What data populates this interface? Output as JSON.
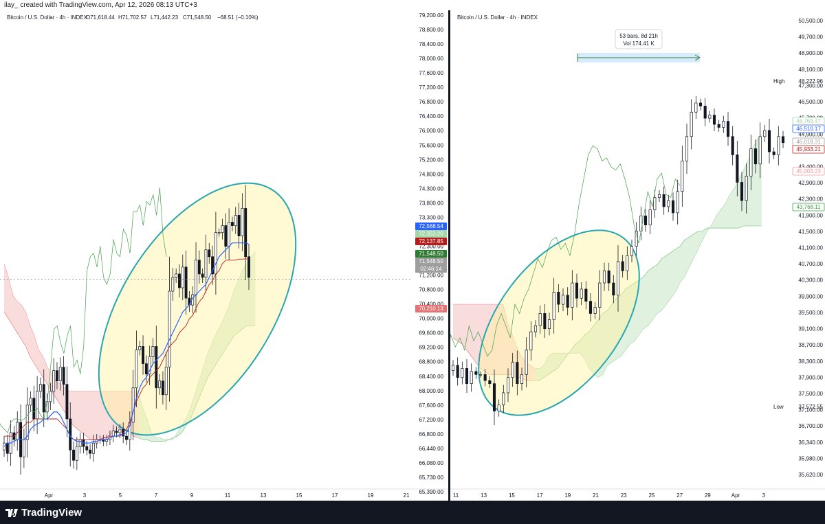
{
  "header": {
    "text": "ilay_ created with TradingView.com, Apr 12, 2026 08:13 UTC+3"
  },
  "footer": {
    "brand": "TradingView",
    "logo_icon": "tradingview-logo-icon"
  },
  "colors": {
    "up": "#ffffff",
    "down": "#131722",
    "tenkan": "#2962ff",
    "kijun": "#b71c1c",
    "chikou": "#43a047",
    "cloud_bull": "#a5d6a7",
    "cloud_bear": "#ef9a9a",
    "ellipse_fill": "#fff59d",
    "ellipse_stroke": "#26a6b0"
  },
  "chart_data": [
    {
      "type": "candlestick",
      "title": "Bitcoin / U.S. Dollar · 4h · INDEX",
      "ohlc": {
        "O": "O71,618.44",
        "H": "H71,702.57",
        "L": "L71,442.23",
        "C": "C71,548.50",
        "change": "−68.51 (−0.10%)"
      },
      "y_ticks": [
        "79,200.00",
        "78,800.00",
        "78,400.00",
        "78,000.00",
        "77,600.00",
        "77,200.00",
        "76,800.00",
        "76,400.00",
        "76,000.00",
        "75,600.00",
        "75,200.00",
        "74,800.00",
        "74,300.00",
        "73,800.00",
        "73,300.00",
        "72,800.00",
        "72,300.00",
        "71,800.00",
        "71,200.00",
        "70,800.00",
        "70,400.00",
        "70,000.00",
        "69,600.00",
        "69,200.00",
        "68,800.00",
        "68,400.00",
        "68,000.00",
        "67,600.00",
        "67,200.00",
        "66,800.00",
        "66,440.00",
        "66,080.00",
        "65,730.00",
        "65,390.00"
      ],
      "x_ticks": [
        "Apr",
        "3",
        "5",
        "7",
        "9",
        "11",
        "13",
        "15",
        "17",
        "19",
        "21"
      ],
      "price_labels": [
        {
          "value": "72,568.54",
          "color": "#2962ff"
        },
        {
          "value": "72,353.20",
          "color": "#a5d6a7"
        },
        {
          "value": "72,137.85",
          "color": "#b71c1c"
        },
        {
          "value": "71,548.50",
          "color": "#2e7d32"
        },
        {
          "value": "71,548.50",
          "color": "#9e9e9e"
        },
        {
          "value": "02:46:14",
          "color": "#9e9e9e"
        },
        {
          "value": "70,210.13",
          "color": "#e57373"
        }
      ],
      "last_price": 71548.5,
      "candles_close": [
        66800,
        66500,
        67100,
        66900,
        67400,
        66400,
        66900,
        67900,
        68100,
        67500,
        68300,
        68500,
        67700,
        68000,
        68300,
        68900,
        68600,
        69000,
        68500,
        67500,
        66600,
        66300,
        66700,
        66900,
        66700,
        66600,
        66500,
        66800,
        66900,
        66900,
        66850,
        66900,
        67000,
        67150,
        67100,
        67200,
        67000,
        66900,
        67400,
        68400,
        69500,
        69600,
        69100,
        68800,
        69300,
        69600,
        68400,
        68600,
        68200,
        69000,
        71200,
        71600,
        71700,
        71300,
        71900,
        71000,
        70800,
        71100,
        72100,
        71700,
        71600,
        72400,
        72200,
        71700,
        72900,
        72900,
        73100,
        72500,
        73200,
        73100,
        73400,
        72800,
        73600,
        72200,
        71600
      ],
      "tenkan": [
        66700,
        66800,
        66800,
        66850,
        66900,
        66900,
        66900,
        67000,
        67200,
        67300,
        67350,
        67400,
        67500,
        67500,
        67600,
        67700,
        67700,
        67600,
        67400,
        67200,
        67000,
        66900,
        66850,
        66850,
        66800,
        66800,
        66800,
        66850,
        66850,
        66900,
        66900,
        66900,
        66950,
        67000,
        67000,
        67050,
        67050,
        67100,
        67300,
        67700,
        68100,
        68400,
        68600,
        68700,
        68900,
        69100,
        69200,
        69300,
        69400,
        69600,
        69800,
        70000,
        70200,
        70400,
        70600,
        70700,
        70800,
        71000,
        71100,
        71200,
        71300,
        71400,
        71600,
        71800,
        72000,
        72200,
        72300,
        72400,
        72500,
        72600,
        72600,
        72600,
        72600,
        72600,
        72560
      ],
      "kijun": [
        67000,
        67000,
        67000,
        67000,
        67100,
        67200,
        67300,
        67400,
        67400,
        67500,
        67500,
        67500,
        67500,
        67500,
        67500,
        67500,
        67500,
        67400,
        67300,
        67200,
        67000,
        66900,
        66900,
        66900,
        66900,
        66900,
        66900,
        66900,
        66900,
        66900,
        66950,
        66950,
        67000,
        67000,
        67000,
        67000,
        67100,
        67200,
        67400,
        67700,
        68000,
        68200,
        68400,
        68500,
        68700,
        68800,
        68900,
        69000,
        69200,
        69400,
        69600,
        69700,
        69800,
        70000,
        70100,
        70200,
        70400,
        70500,
        70700,
        70900,
        71000,
        71200,
        71400,
        71500,
        71700,
        71800,
        72000,
        72100,
        72100,
        72100,
        72100,
        72130,
        72130,
        72137,
        72137
      ]
    },
    {
      "type": "candlestick",
      "title": "Bitcoin / U.S. Dollar · 4h · INDEX",
      "measure": {
        "bars": "53 bars, 8d 21h",
        "volume": "Vol 174.41 K"
      },
      "y_ticks": [
        "50,500.00",
        "49,700.00",
        "48,900.00",
        "48,100.00",
        "47,300.00",
        "46,500.00",
        "45,700.00",
        "44,900.00",
        "44,100.00",
        "43,400.00",
        "42,900.00",
        "42,300.00",
        "41,900.00",
        "41,500.00",
        "41,100.00",
        "40,700.00",
        "40,300.00",
        "39,900.00",
        "39,500.00",
        "39,100.00",
        "38,700.00",
        "38,300.00",
        "37,900.00",
        "37,500.00",
        "37,100.00",
        "36,700.00",
        "36,340.00",
        "35,980.00",
        "35,620.00"
      ],
      "x_ticks": [
        "11",
        "13",
        "15",
        "17",
        "19",
        "21",
        "23",
        "25",
        "27",
        "29",
        "Apr",
        "3"
      ],
      "high": {
        "label": "High",
        "value": "48,222.96"
      },
      "low": {
        "label": "Low",
        "value": "37,572.55"
      },
      "price_labels": [
        {
          "value": "46,769.47",
          "color": "#a5d6a7"
        },
        {
          "value": "46,510.17",
          "color": "#2962ff"
        },
        {
          "value": "46,018.31",
          "color": "#9e9e9e"
        },
        {
          "value": "45,933.21",
          "color": "#b71c1c"
        },
        {
          "value": "45,003.23",
          "color": "#ef9a9a"
        },
        {
          "value": "43,768.11",
          "color": "#43a047"
        }
      ],
      "candles_close": [
        39200,
        38800,
        39100,
        38600,
        39000,
        38900,
        38900,
        38700,
        38600,
        37700,
        37900,
        38300,
        38800,
        39300,
        38600,
        38900,
        39700,
        40300,
        40500,
        40900,
        40400,
        40700,
        41600,
        41200,
        41500,
        41100,
        41900,
        41400,
        41700,
        41300,
        40900,
        41100,
        41900,
        42300,
        41900,
        41500,
        42600,
        42300,
        42800,
        43100,
        43600,
        44100,
        43800,
        44300,
        44700,
        44800,
        44400,
        44600,
        44200,
        44900,
        45900,
        46700,
        47500,
        47800,
        47700,
        47300,
        47400,
        47100,
        47000,
        47200,
        46700,
        46100,
        45200,
        44600,
        45400,
        46300,
        45800,
        46700,
        46900,
        46200,
        46100,
        46700,
        46500
      ]
    }
  ]
}
